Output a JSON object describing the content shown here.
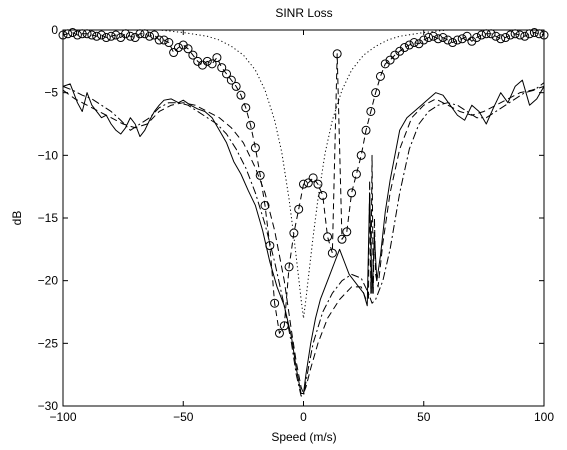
{
  "chart_data": {
    "type": "line",
    "title": "SINR Loss",
    "xlabel": "Speed (m/s)",
    "ylabel": "dB",
    "xlim": [
      -100,
      100
    ],
    "ylim": [
      -30,
      0
    ],
    "xticks": [
      -100,
      -50,
      0,
      50,
      100
    ],
    "yticks": [
      0,
      -5,
      -10,
      -15,
      -20,
      -25,
      -30
    ],
    "grid": false,
    "legend": "none",
    "series": [
      {
        "style": "solid",
        "color": "#000000",
        "x": [
          -100,
          -97,
          -94,
          -92,
          -90,
          -88,
          -86,
          -84,
          -82,
          -80,
          -78,
          -76,
          -74,
          -72,
          -70,
          -68,
          -66,
          -64,
          -62,
          -60,
          -58,
          -55,
          -52,
          -50,
          -47,
          -44,
          -41,
          -38,
          -35,
          -32,
          -29,
          -26,
          -23,
          -20,
          -17,
          -14,
          -11,
          -8,
          -5,
          -3,
          -1,
          0,
          1,
          3,
          5,
          7,
          9,
          11,
          13,
          15,
          17,
          19,
          21,
          23,
          25,
          26.5,
          27.5,
          28.5,
          29.5,
          30.5,
          32,
          34,
          36,
          38,
          40,
          43,
          46,
          49,
          52,
          55,
          58,
          61,
          64,
          67,
          70,
          73,
          76,
          79,
          82,
          85,
          88,
          91,
          94,
          97,
          100
        ],
        "y": [
          -4.5,
          -4.3,
          -5.8,
          -6.5,
          -5.0,
          -6.0,
          -6.5,
          -7.0,
          -6.8,
          -7.5,
          -8.0,
          -8.3,
          -7.8,
          -7.0,
          -7.5,
          -8.5,
          -8.0,
          -7.2,
          -6.5,
          -6.0,
          -5.6,
          -5.5,
          -5.8,
          -5.6,
          -6.0,
          -6.3,
          -6.5,
          -7.0,
          -8.0,
          -9.0,
          -10.5,
          -11.5,
          -12.8,
          -14.0,
          -16.0,
          -18.5,
          -20.5,
          -22.0,
          -24.5,
          -27.0,
          -29.0,
          -29.0,
          -27.5,
          -25.0,
          -23.0,
          -21.5,
          -20.5,
          -19.5,
          -18.5,
          -17.5,
          -18.5,
          -19.5,
          -20.0,
          -20.5,
          -21.0,
          -22.0,
          -13.0,
          -21.0,
          -16.5,
          -20.0,
          -18.0,
          -14.5,
          -12.0,
          -10.0,
          -8.0,
          -7.0,
          -6.5,
          -6.0,
          -5.5,
          -5.0,
          -5.2,
          -6.0,
          -6.8,
          -7.2,
          -6.0,
          -6.5,
          -7.5,
          -6.2,
          -5.0,
          -5.8,
          -4.5,
          -4.0,
          -6.0,
          -5.5,
          -4.5
        ]
      },
      {
        "style": "dash-dot",
        "color": "#000000",
        "x": [
          -100,
          -96,
          -92,
          -88,
          -84,
          -80,
          -76,
          -72,
          -68,
          -64,
          -60,
          -56,
          -52,
          -48,
          -44,
          -40,
          -36,
          -32,
          -28,
          -24,
          -20,
          -16,
          -12,
          -8,
          -5,
          -3,
          -1,
          0,
          2,
          4,
          8,
          12,
          16,
          20,
          24,
          27,
          28.5,
          30,
          33,
          36,
          40,
          44,
          48,
          52,
          56,
          60,
          64,
          68,
          72,
          76,
          80,
          84,
          88,
          92,
          96,
          100
        ],
        "y": [
          -4.5,
          -4.8,
          -5.2,
          -5.5,
          -6.0,
          -6.5,
          -7.2,
          -8.0,
          -7.5,
          -7.0,
          -6.2,
          -5.8,
          -5.8,
          -6.0,
          -6.5,
          -7.0,
          -7.5,
          -8.3,
          -9.5,
          -11.0,
          -13.0,
          -15.5,
          -18.5,
          -22.0,
          -25.0,
          -27.5,
          -29.2,
          -29.2,
          -27.0,
          -25.0,
          -22.5,
          -21.0,
          -20.0,
          -19.5,
          -19.8,
          -21.0,
          -21.8,
          -21.5,
          -20.0,
          -17.5,
          -13.0,
          -9.5,
          -7.5,
          -6.5,
          -6.0,
          -5.8,
          -6.0,
          -6.5,
          -7.0,
          -7.0,
          -6.5,
          -6.0,
          -5.5,
          -5.0,
          -4.8,
          -4.2
        ]
      },
      {
        "style": "dashed",
        "color": "#000000",
        "x": [
          -100,
          -95,
          -90,
          -85,
          -80,
          -75,
          -70,
          -65,
          -60,
          -55,
          -50,
          -45,
          -40,
          -35,
          -30,
          -25,
          -20,
          -16,
          -12,
          -8,
          -5,
          -3,
          -1,
          0,
          1,
          3,
          6,
          10,
          15,
          20,
          24,
          26,
          27,
          27.5,
          28,
          28.5,
          29,
          29.5,
          30,
          31,
          33,
          36,
          40,
          45,
          50,
          55,
          60,
          65,
          70,
          75,
          80,
          85,
          90,
          95,
          100
        ],
        "y": [
          -4.8,
          -5.5,
          -6.0,
          -6.5,
          -7.0,
          -7.5,
          -7.8,
          -7.5,
          -6.5,
          -6.0,
          -5.8,
          -6.0,
          -6.5,
          -7.0,
          -7.8,
          -9.0,
          -11.0,
          -13.0,
          -16.0,
          -20.0,
          -24.0,
          -26.5,
          -28.5,
          -29.0,
          -28.5,
          -27.0,
          -25.0,
          -23.0,
          -21.5,
          -20.5,
          -20.5,
          -21.5,
          -21.5,
          -12.0,
          -21.0,
          -10.0,
          -21.0,
          -15.0,
          -19.5,
          -20.5,
          -17.0,
          -13.0,
          -9.5,
          -7.0,
          -6.0,
          -5.5,
          -6.0,
          -6.5,
          -6.8,
          -6.5,
          -6.0,
          -5.5,
          -5.0,
          -4.8,
          -4.5
        ]
      },
      {
        "style": "dotted",
        "color": "#000000",
        "x": [
          -100,
          -90,
          -80,
          -70,
          -60,
          -50,
          -40,
          -35,
          -30,
          -25,
          -20,
          -16,
          -12,
          -9,
          -6,
          -4,
          -2,
          -1,
          0,
          1,
          2,
          4,
          6,
          9,
          12,
          16,
          20,
          25,
          30,
          35,
          40,
          50,
          60,
          70,
          80,
          90,
          100
        ],
        "y": [
          0,
          0,
          0,
          0,
          0,
          -0.2,
          -0.5,
          -0.8,
          -1.3,
          -2.0,
          -3.2,
          -4.8,
          -7.2,
          -9.8,
          -13.5,
          -16.5,
          -19.8,
          -21.5,
          -23.0,
          -21.5,
          -19.8,
          -16.5,
          -13.5,
          -9.8,
          -7.2,
          -4.8,
          -3.2,
          -2.0,
          -1.3,
          -0.8,
          -0.5,
          -0.2,
          0,
          0,
          0,
          0,
          0
        ]
      },
      {
        "style": "dashed-circles",
        "color": "#000000",
        "x": [
          -100,
          -98,
          -96,
          -94,
          -92,
          -90,
          -88,
          -86,
          -84,
          -82,
          -80,
          -78,
          -76,
          -74,
          -72,
          -70,
          -68,
          -66,
          -64,
          -62,
          -60,
          -58,
          -56,
          -54,
          -52,
          -50,
          -48,
          -46,
          -44,
          -42,
          -40,
          -38,
          -36,
          -34,
          -32,
          -30,
          -28,
          -26,
          -24,
          -22,
          -20,
          -18,
          -16,
          -14,
          -12,
          -10,
          -8,
          -6,
          -4,
          -2,
          0,
          2,
          4,
          6,
          8,
          10,
          12,
          14,
          16,
          18,
          20,
          22,
          24,
          26,
          28,
          30,
          32,
          34,
          36,
          38,
          40,
          42,
          44,
          46,
          48,
          50,
          52,
          54,
          56,
          58,
          60,
          62,
          64,
          66,
          68,
          70,
          72,
          74,
          76,
          78,
          80,
          82,
          84,
          86,
          88,
          90,
          92,
          94,
          96,
          98,
          100
        ],
        "y": [
          -0.4,
          -0.3,
          -0.2,
          -0.4,
          -0.3,
          -0.3,
          -0.4,
          -0.5,
          -0.4,
          -0.6,
          -0.5,
          -0.4,
          -0.6,
          -0.3,
          -0.5,
          -0.6,
          -0.3,
          -0.3,
          -0.5,
          -0.4,
          -0.8,
          -0.8,
          -1.0,
          -1.8,
          -1.4,
          -1.2,
          -1.5,
          -2.0,
          -2.5,
          -2.8,
          -2.5,
          -2.7,
          -2.2,
          -3.0,
          -3.5,
          -4.0,
          -4.5,
          -5.2,
          -6.2,
          -7.6,
          -9.4,
          -11.6,
          -14.0,
          -17.2,
          -21.8,
          -24.2,
          -23.6,
          -18.9,
          -16.2,
          -14.3,
          -12.3,
          -12.2,
          -11.8,
          -12.3,
          -13.2,
          -16.5,
          -17.8,
          -1.9,
          -16.7,
          -16.1,
          -13.0,
          -11.5,
          -10.0,
          -8.0,
          -6.5,
          -5.0,
          -3.7,
          -2.7,
          -2.4,
          -2.0,
          -1.7,
          -1.4,
          -1.2,
          -1.0,
          -1.1,
          -0.8,
          -0.6,
          -0.5,
          -0.7,
          -0.6,
          -0.8,
          -1.0,
          -0.8,
          -0.7,
          -0.5,
          -0.9,
          -0.6,
          -0.4,
          -0.3,
          -0.3,
          -0.5,
          -0.7,
          -0.6,
          -0.4,
          -0.3,
          -0.4,
          -0.5,
          -0.3,
          -0.2,
          -0.3,
          -0.4
        ]
      }
    ]
  }
}
